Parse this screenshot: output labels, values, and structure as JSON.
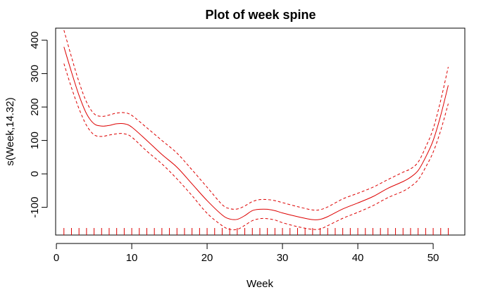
{
  "chart_data": {
    "type": "line",
    "title": "Plot of week spine",
    "xlabel": "Week",
    "ylabel": "s(Week,14.32)",
    "xlim": [
      -0.1,
      54.2
    ],
    "ylim": [
      -183,
      436
    ],
    "xticks": [
      0,
      10,
      20,
      30,
      40,
      50
    ],
    "yticks": [
      -100,
      0,
      100,
      200,
      300,
      400
    ],
    "grid": false,
    "rug": [
      1,
      2,
      3,
      4,
      5,
      6,
      7,
      8,
      9,
      10,
      11,
      12,
      13,
      14,
      15,
      16,
      17,
      18,
      19,
      20,
      21,
      22,
      23,
      24,
      25,
      26,
      27,
      28,
      29,
      30,
      31,
      32,
      33,
      34,
      35,
      36,
      37,
      38,
      39,
      40,
      41,
      42,
      43,
      44,
      45,
      46,
      47,
      48,
      49,
      50,
      51,
      52
    ],
    "colors": {
      "curve": "#dd0000",
      "rug": "#dd0000",
      "axis": "#000000"
    },
    "series": [
      {
        "role": "estimate",
        "line_style": "solid",
        "x": [
          1,
          2,
          3,
          4,
          5,
          6,
          7,
          8,
          9,
          10,
          12,
          14,
          16,
          18,
          20,
          22,
          23,
          24,
          25,
          26,
          27,
          28,
          29,
          30,
          32,
          34,
          35,
          36,
          38,
          40,
          42,
          44,
          46,
          47,
          48,
          49,
          50,
          51,
          52
        ],
        "values": [
          380,
          305,
          235,
          180,
          150,
          143,
          145,
          150,
          150,
          140,
          100,
          58,
          20,
          -30,
          -80,
          -123,
          -135,
          -136,
          -125,
          -110,
          -106,
          -106,
          -110,
          -117,
          -128,
          -137,
          -136,
          -128,
          -105,
          -87,
          -68,
          -43,
          -23,
          -10,
          10,
          50,
          100,
          175,
          265
        ]
      },
      {
        "role": "upper band",
        "line_style": "dashed",
        "x": [
          1,
          2,
          3,
          4,
          5,
          6,
          7,
          8,
          9,
          10,
          12,
          14,
          16,
          18,
          20,
          22,
          23,
          24,
          25,
          26,
          27,
          28,
          29,
          30,
          32,
          34,
          35,
          36,
          38,
          40,
          42,
          44,
          46,
          47,
          48,
          49,
          50,
          51,
          52
        ],
        "values": [
          430,
          350,
          275,
          215,
          180,
          172,
          176,
          182,
          183,
          175,
          138,
          100,
          62,
          12,
          -40,
          -92,
          -104,
          -105,
          -96,
          -83,
          -77,
          -77,
          -80,
          -86,
          -98,
          -108,
          -107,
          -99,
          -75,
          -58,
          -40,
          -17,
          5,
          15,
          35,
          80,
          135,
          220,
          320
        ]
      },
      {
        "role": "lower band",
        "line_style": "dashed",
        "x": [
          1,
          2,
          3,
          4,
          5,
          6,
          7,
          8,
          9,
          10,
          12,
          14,
          16,
          18,
          20,
          22,
          23,
          24,
          25,
          26,
          27,
          28,
          29,
          30,
          32,
          34,
          35,
          36,
          38,
          40,
          42,
          44,
          46,
          47,
          48,
          49,
          50,
          51,
          52
        ],
        "values": [
          330,
          258,
          195,
          145,
          117,
          112,
          116,
          120,
          120,
          110,
          68,
          30,
          -15,
          -65,
          -118,
          -155,
          -166,
          -166,
          -154,
          -140,
          -134,
          -134,
          -138,
          -146,
          -158,
          -166,
          -165,
          -155,
          -133,
          -115,
          -95,
          -71,
          -52,
          -38,
          -18,
          20,
          65,
          130,
          210
        ]
      }
    ]
  }
}
